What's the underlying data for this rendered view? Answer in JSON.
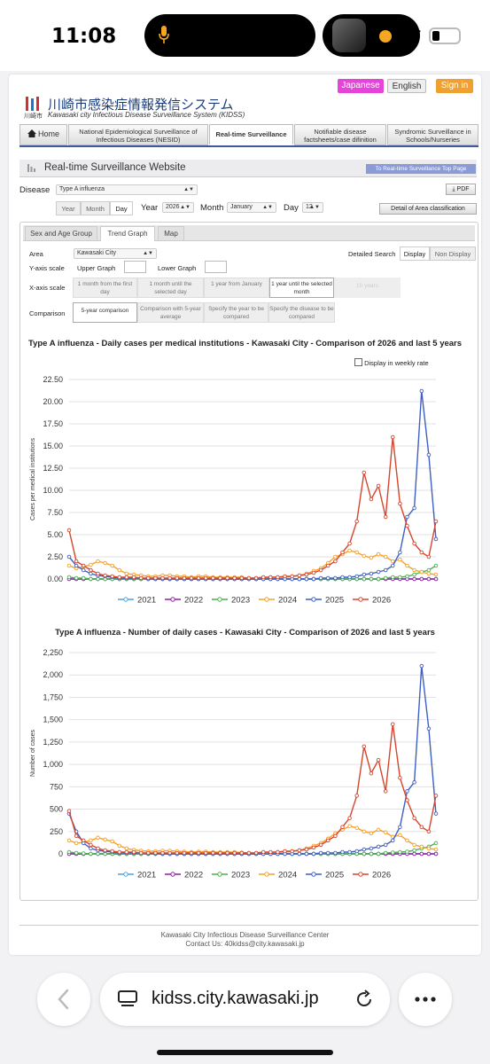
{
  "status": {
    "time": "11:08"
  },
  "header": {
    "lang_jp": "Japanese",
    "lang_en": "English",
    "sign_in": "Sign in",
    "logo_kanji": "川崎市",
    "title": "川崎市感染症情報発信システム",
    "subtitle": "Kawasaki city Infectious Disease Surveillance System (KIDSS)"
  },
  "nav": {
    "home": "Home",
    "nesid": "National Epidemiological Surveillance of Infectious Diseases (NESID)",
    "realtime": "Real-time Surveillance",
    "notifiable": "Notifiable disease factsheets/case difinition",
    "syndromic": "Syndromic Surveillance in Schools/Nurseries"
  },
  "section": {
    "title": "Real-time Surveillance Website",
    "top_link": "To Real-time Surveillance Top Page"
  },
  "controls": {
    "disease_label": "Disease",
    "disease_value": "Type A influenza",
    "pdf": "PDF",
    "period_year": "Year",
    "period_month": "Month",
    "period_day": "Day",
    "year_label": "Year",
    "year_value": "2026",
    "month_label": "Month",
    "month_value": "January",
    "day_label": "Day",
    "day_value": "12",
    "detail_button": "Detail of Area classification"
  },
  "tabs": {
    "sex_age": "Sex and Age Group",
    "trend": "Trend Graph",
    "map": "Map"
  },
  "options": {
    "area_label": "Area",
    "area_value": "Kawasaki City",
    "detailed_search": "Detailed Search",
    "display": "Display",
    "non_display": "Non Display",
    "yaxis_label": "Y-axis scale",
    "upper_graph": "Upper Graph",
    "lower_graph": "Lower Graph",
    "xaxis_label": "X-axis scale",
    "x_opt1": "1 month from the first day",
    "x_opt2": "1 month until the selected day",
    "x_opt3": "1 year from January",
    "x_opt4": "1 year until the selected month",
    "x_opt5": "10 years",
    "comparison_label": "Comparison",
    "c_opt1": "5-year comparison",
    "c_opt2": "Comparison with 5-year average",
    "c_opt3": "Specify the year to be compared",
    "c_opt4": "Specify the disease to be compared",
    "weekly_rate": "Display in weekly rate"
  },
  "chart_data": [
    {
      "type": "line",
      "title": "Type A influenza - Daily cases per medical institutions - Kawasaki City - Comparison of 2026 and last 5 years",
      "ylabel": "Cases per medical institutions",
      "ylim": [
        0,
        22.5
      ],
      "yticks": [
        "0.00",
        "2.50",
        "5.00",
        "7.50",
        "10.00",
        "12.50",
        "15.00",
        "17.50",
        "20.00",
        "22.50"
      ],
      "grid": true,
      "legend": "bottom",
      "series": [
        {
          "name": "2021",
          "color": "#4fa3e0",
          "values": [
            0,
            0,
            0,
            0,
            0,
            0,
            0,
            0,
            0,
            0,
            0,
            0,
            0,
            0,
            0,
            0,
            0,
            0,
            0,
            0,
            0,
            0,
            0,
            0,
            0,
            0,
            0,
            0,
            0,
            0,
            0,
            0,
            0,
            0,
            0,
            0,
            0,
            0,
            0,
            0,
            0,
            0,
            0,
            0,
            0,
            0,
            0,
            0,
            0,
            0,
            0,
            0
          ]
        },
        {
          "name": "2022",
          "color": "#8e1fa0",
          "values": [
            0,
            0,
            0,
            0,
            0,
            0,
            0,
            0,
            0,
            0,
            0,
            0,
            0,
            0,
            0,
            0,
            0,
            0,
            0,
            0,
            0,
            0,
            0,
            0,
            0,
            0,
            0,
            0,
            0,
            0,
            0,
            0,
            0,
            0,
            0,
            0,
            0,
            0,
            0,
            0,
            0,
            0,
            0,
            0,
            0,
            0,
            0,
            0,
            0,
            0,
            0,
            0
          ]
        },
        {
          "name": "2023",
          "color": "#4caf50",
          "values": [
            0.2,
            0.1,
            0.1,
            0,
            0,
            0,
            0,
            0,
            0,
            0,
            0,
            0,
            0,
            0,
            0,
            0,
            0,
            0,
            0,
            0,
            0,
            0,
            0,
            0,
            0,
            0,
            0,
            0,
            0,
            0,
            0,
            0,
            0,
            0,
            0,
            0,
            0,
            0,
            0,
            0,
            0,
            0,
            0,
            0,
            0.1,
            0.2,
            0.2,
            0.3,
            0.5,
            0.8,
            1.0,
            1.5
          ]
        },
        {
          "name": "2024",
          "color": "#f5a027",
          "values": [
            1.5,
            1.2,
            1.4,
            1.6,
            2.0,
            1.8,
            1.5,
            1.0,
            0.6,
            0.5,
            0.4,
            0.3,
            0.3,
            0.4,
            0.4,
            0.3,
            0.3,
            0.2,
            0.3,
            0.3,
            0.2,
            0.2,
            0.2,
            0.2,
            0.2,
            0.1,
            0.1,
            0.1,
            0.2,
            0.2,
            0.2,
            0.3,
            0.4,
            0.6,
            0.9,
            1.2,
            1.8,
            2.5,
            2.8,
            3.2,
            3.0,
            2.6,
            2.4,
            2.8,
            2.5,
            2.0,
            2.2,
            1.5,
            1.0,
            0.8,
            0.6,
            0.5
          ]
        },
        {
          "name": "2025",
          "color": "#3e5fc4",
          "values": [
            2.5,
            1.5,
            1.0,
            0.6,
            0.4,
            0.3,
            0.2,
            0.1,
            0.1,
            0.1,
            0.1,
            0,
            0,
            0,
            0,
            0,
            0,
            0,
            0,
            0,
            0,
            0,
            0,
            0,
            0,
            0,
            0,
            0,
            0,
            0,
            0,
            0,
            0,
            0,
            0,
            0.1,
            0.1,
            0.1,
            0.2,
            0.2,
            0.3,
            0.5,
            0.6,
            0.8,
            1.0,
            1.5,
            3.0,
            7.0,
            8.0,
            21.2,
            14.0,
            4.5
          ]
        },
        {
          "name": "2026",
          "color": "#d6452d",
          "values": [
            5.5,
            2.0,
            1.5,
            1.0,
            0.6,
            0.4,
            0.3,
            0.2,
            0.2,
            0.2,
            0.1,
            0.1,
            0.1,
            0.1,
            0.1,
            0.1,
            0.1,
            0.1,
            0.1,
            0.1,
            0.1,
            0.1,
            0.1,
            0.1,
            0.1,
            0.1,
            0.1,
            0.2,
            0.2,
            0.2,
            0.3,
            0.3,
            0.4,
            0.5,
            0.7,
            1.0,
            1.5,
            2.0,
            3.0,
            4.0,
            6.5,
            12.0,
            9.0,
            10.5,
            7.0,
            16.0,
            8.5,
            6.0,
            4.0,
            3.0,
            2.5,
            6.5
          ]
        }
      ]
    },
    {
      "type": "line",
      "title": "Type A influenza - Number of daily cases - Kawasaki City - Comparison of 2026 and last 5 years",
      "ylabel": "Number of cases",
      "ylim": [
        0,
        2250
      ],
      "yticks": [
        "0",
        "250",
        "500",
        "750",
        "1,000",
        "1,250",
        "1,500",
        "1,750",
        "2,000",
        "2,250"
      ],
      "grid": true,
      "legend": "bottom",
      "series": [
        {
          "name": "2021",
          "color": "#4fa3e0",
          "values": [
            0,
            0,
            0,
            0,
            0,
            0,
            0,
            0,
            0,
            0,
            0,
            0,
            0,
            0,
            0,
            0,
            0,
            0,
            0,
            0,
            0,
            0,
            0,
            0,
            0,
            0,
            0,
            0,
            0,
            0,
            0,
            0,
            0,
            0,
            0,
            0,
            0,
            0,
            0,
            0,
            0,
            0,
            0,
            0,
            0,
            0,
            0,
            0,
            0,
            0,
            0,
            0
          ]
        },
        {
          "name": "2022",
          "color": "#8e1fa0",
          "values": [
            0,
            0,
            0,
            0,
            0,
            0,
            0,
            0,
            0,
            0,
            0,
            0,
            0,
            0,
            0,
            0,
            0,
            0,
            0,
            0,
            0,
            0,
            0,
            0,
            0,
            0,
            0,
            0,
            0,
            0,
            0,
            0,
            0,
            0,
            0,
            0,
            0,
            0,
            0,
            0,
            0,
            0,
            0,
            0,
            0,
            0,
            0,
            0,
            0,
            0,
            0,
            0
          ]
        },
        {
          "name": "2023",
          "color": "#4caf50",
          "values": [
            20,
            10,
            5,
            0,
            0,
            0,
            0,
            0,
            0,
            0,
            0,
            0,
            0,
            0,
            0,
            0,
            0,
            0,
            0,
            0,
            0,
            0,
            0,
            0,
            0,
            0,
            0,
            0,
            0,
            0,
            0,
            0,
            0,
            0,
            0,
            0,
            0,
            0,
            0,
            0,
            0,
            0,
            0,
            0,
            10,
            15,
            20,
            25,
            40,
            60,
            80,
            120
          ]
        },
        {
          "name": "2024",
          "color": "#f5a027",
          "values": [
            150,
            120,
            130,
            150,
            180,
            160,
            140,
            90,
            60,
            45,
            35,
            30,
            30,
            35,
            35,
            30,
            25,
            20,
            25,
            25,
            20,
            20,
            20,
            20,
            15,
            10,
            10,
            10,
            15,
            20,
            20,
            30,
            40,
            60,
            90,
            120,
            170,
            230,
            270,
            310,
            290,
            250,
            230,
            270,
            240,
            190,
            210,
            150,
            100,
            80,
            60,
            50
          ]
        },
        {
          "name": "2025",
          "color": "#3e5fc4",
          "values": [
            450,
            250,
            120,
            60,
            40,
            30,
            20,
            10,
            10,
            10,
            10,
            5,
            5,
            0,
            0,
            0,
            0,
            0,
            0,
            0,
            0,
            0,
            0,
            0,
            0,
            0,
            0,
            0,
            0,
            0,
            0,
            0,
            0,
            0,
            0,
            10,
            10,
            10,
            20,
            20,
            30,
            50,
            60,
            80,
            100,
            150,
            300,
            700,
            800,
            2100,
            1400,
            450
          ]
        },
        {
          "name": "2026",
          "color": "#d6452d",
          "values": [
            480,
            200,
            150,
            100,
            60,
            40,
            30,
            20,
            20,
            20,
            10,
            10,
            10,
            10,
            10,
            10,
            10,
            10,
            10,
            10,
            10,
            10,
            10,
            10,
            10,
            10,
            10,
            20,
            20,
            20,
            30,
            30,
            40,
            50,
            70,
            100,
            150,
            200,
            300,
            400,
            650,
            1200,
            900,
            1050,
            700,
            1450,
            850,
            600,
            400,
            300,
            250,
            650
          ]
        }
      ]
    }
  ],
  "footer": {
    "center": "Kawasaki City Infectious Disease Surveillance Center",
    "contact": "Contact Us: 40kidss@city.kawasaki.jp"
  },
  "browser": {
    "url": "kidss.city.kawasaki.jp"
  }
}
